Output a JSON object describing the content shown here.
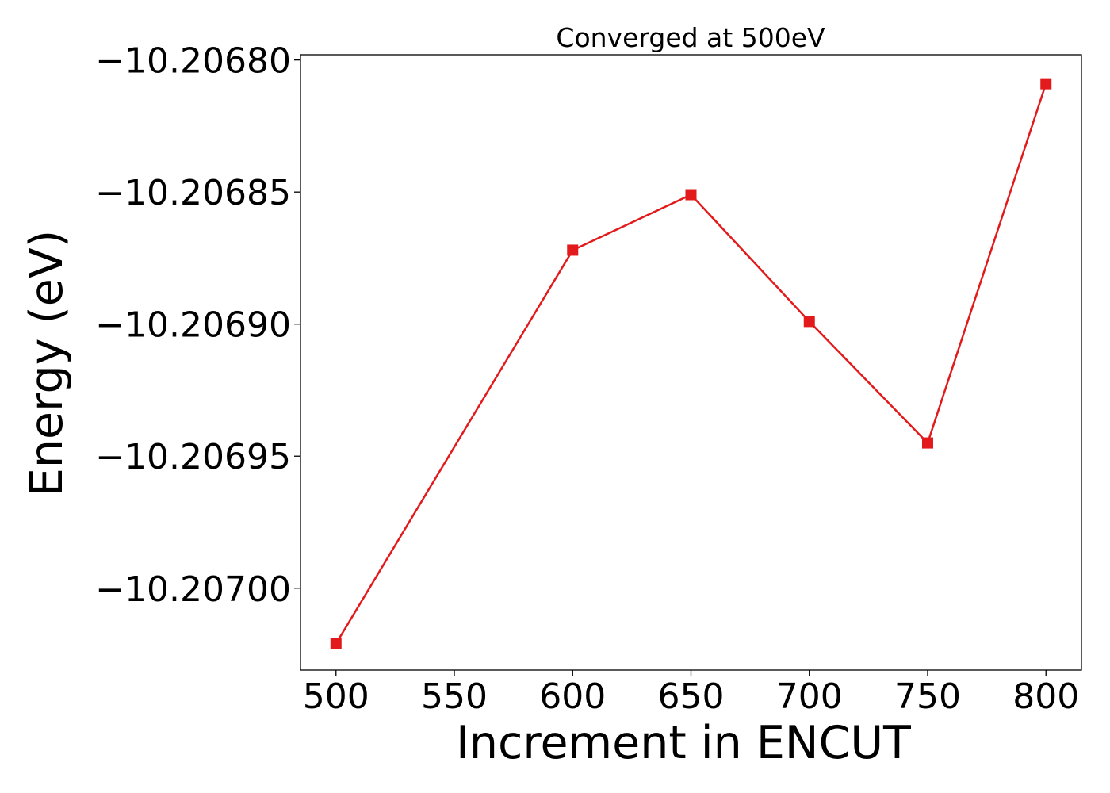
{
  "chart_data": {
    "type": "line",
    "title": "Converged at 500eV",
    "xlabel": "Increment in ENCUT",
    "ylabel": "Energy (eV)",
    "x": [
      500,
      600,
      650,
      700,
      750,
      800
    ],
    "series": [
      {
        "values": [
          -10.207021,
          -10.206872,
          -10.206851,
          -10.206899,
          -10.206945,
          -10.206809
        ],
        "color": "#e31a1c",
        "marker": "square"
      }
    ],
    "xticks": [
      500,
      550,
      600,
      650,
      700,
      750,
      800
    ],
    "xtick_labels": [
      "500",
      "550",
      "600",
      "650",
      "700",
      "750",
      "800"
    ],
    "yticks": [
      -10.2068,
      -10.20685,
      -10.2069,
      -10.20695,
      -10.207
    ],
    "ytick_labels": [
      "−10.20680",
      "−10.20685",
      "−10.20690",
      "−10.20695",
      "−10.20700"
    ],
    "xlim": [
      485,
      815
    ],
    "ylim": [
      -10.207031,
      -10.206798
    ],
    "grid": false,
    "legend": "none"
  }
}
